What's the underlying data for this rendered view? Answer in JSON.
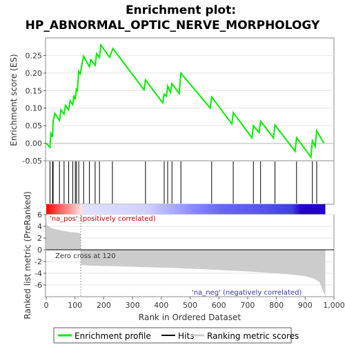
{
  "title_line1": "Enrichment plot:",
  "title_line2": "HP_ABNORMAL_OPTIC_NERVE_MORPHOLOGY",
  "colors": {
    "profile": "#00ee00",
    "hits": "#000000",
    "metric_fill": "#cccccc",
    "pos_label": "#cc0000",
    "neg_label": "#3333aa",
    "zero_line": "#000000"
  },
  "chart_data": [
    {
      "type": "line",
      "name": "enrichment",
      "ylabel": "Enrichment score (ES)",
      "ylim": [
        -0.05,
        0.3
      ],
      "yticks": [
        "-0.05",
        "0.00",
        "0.05",
        "0.10",
        "0.15",
        "0.20",
        "0.25"
      ],
      "ytick_values": [
        -0.05,
        0.0,
        0.05,
        0.1,
        0.15,
        0.2,
        0.25
      ],
      "xlim": [
        0,
        1000
      ],
      "series": [
        {
          "name": "Enrichment profile",
          "x": [
            0,
            13,
            16,
            22,
            24,
            30,
            46,
            51,
            62,
            67,
            78,
            83,
            92,
            96,
            101,
            105,
            108,
            113,
            118,
            130,
            150,
            155,
            170,
            175,
            185,
            190,
            220,
            232,
            340,
            345,
            405,
            410,
            418,
            422,
            432,
            437,
            462,
            468,
            570,
            575,
            645,
            650,
            715,
            720,
            740,
            745,
            790,
            795,
            865,
            870,
            920,
            925,
            935,
            940,
            965
          ],
          "y": [
            0.0,
            -0.012,
            0.028,
            0.018,
            0.063,
            0.085,
            0.065,
            0.095,
            0.083,
            0.108,
            0.095,
            0.121,
            0.11,
            0.136,
            0.125,
            0.157,
            0.147,
            0.205,
            0.198,
            0.248,
            0.218,
            0.238,
            0.222,
            0.255,
            0.244,
            0.28,
            0.245,
            0.27,
            0.152,
            0.18,
            0.115,
            0.14,
            0.134,
            0.163,
            0.145,
            0.17,
            0.142,
            0.2,
            0.1,
            0.132,
            0.055,
            0.087,
            0.015,
            0.05,
            0.03,
            0.063,
            0.015,
            0.052,
            -0.023,
            0.016,
            -0.04,
            0.007,
            -0.01,
            0.036,
            0.0
          ]
        }
      ]
    },
    {
      "type": "area",
      "name": "ranked-metric",
      "xlabel": "Rank in Ordered Dataset",
      "ylabel": "Ranked list metric (PreRanked)",
      "ylim": [
        -8,
        6
      ],
      "yticks": [
        "-6",
        "-4",
        "-2",
        "0",
        "2",
        "4",
        "6"
      ],
      "ytick_values": [
        -6,
        -4,
        -2,
        0,
        2,
        4,
        6
      ],
      "xlim": [
        0,
        1000
      ],
      "xticks": [
        "0",
        "100",
        "200",
        "300",
        "400",
        "500",
        "600",
        "700",
        "800",
        "900",
        "1,000"
      ],
      "xtick_values": [
        0,
        100,
        200,
        300,
        400,
        500,
        600,
        700,
        800,
        900,
        1000
      ],
      "series": [
        {
          "name": "Ranking metric scores",
          "x": [
            0,
            2,
            10,
            25,
            50,
            80,
            110,
            119,
            120,
            121,
            150,
            300,
            500,
            700,
            850,
            900,
            930,
            950,
            958,
            965,
            970
          ],
          "y": [
            6.0,
            4.3,
            3.9,
            3.6,
            3.3,
            3.05,
            2.9,
            2.8,
            0.0,
            -2.6,
            -2.7,
            -2.9,
            -3.2,
            -3.7,
            -4.2,
            -4.5,
            -4.9,
            -5.5,
            -6.5,
            -7.4,
            -7.8
          ]
        }
      ],
      "annotations": {
        "pos": "'na_pos' (positively correlated)",
        "neg": "'na_neg' (negatively correlated)",
        "zero_cross": "Zero cross at 120"
      },
      "zero_cross_rank": 120
    }
  ],
  "hits": [
    13,
    22,
    24,
    46,
    62,
    78,
    92,
    101,
    105,
    113,
    130,
    150,
    170,
    185,
    230,
    345,
    410,
    422,
    437,
    468,
    575,
    650,
    720,
    745,
    795,
    870,
    925,
    940
  ],
  "rank_bar": {
    "max_rank": 970,
    "stops": [
      {
        "at": 0.0,
        "color": "#ff0000"
      },
      {
        "at": 0.05,
        "color": "#ff6060"
      },
      {
        "at": 0.1,
        "color": "#ffb0b0"
      },
      {
        "at": 0.124,
        "color": "#ffe0e0"
      },
      {
        "at": 0.135,
        "color": "#e0e0ff"
      },
      {
        "at": 0.36,
        "color": "#d0d0ff"
      },
      {
        "at": 0.46,
        "color": "#a8a8ff"
      },
      {
        "at": 0.53,
        "color": "#8888ff"
      },
      {
        "at": 0.63,
        "color": "#6666ee"
      },
      {
        "at": 0.75,
        "color": "#5a5ae8"
      },
      {
        "at": 0.88,
        "color": "#4040dd"
      },
      {
        "at": 0.915,
        "color": "#2200cc"
      },
      {
        "at": 1.0,
        "color": "#2200cc"
      }
    ]
  },
  "legend": [
    {
      "label": "Enrichment profile",
      "kind": "profile"
    },
    {
      "label": "Hits",
      "kind": "hits"
    },
    {
      "label": "Ranking metric scores",
      "kind": "metric"
    }
  ]
}
